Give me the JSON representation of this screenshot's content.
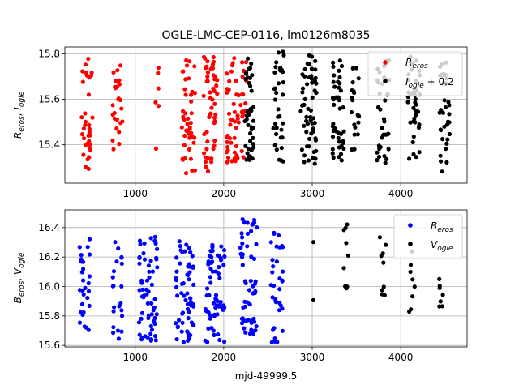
{
  "chart_data": [
    {
      "type": "scatter",
      "title": "OGLE-LMC-CEP-0116, lm0126m8035",
      "xlabel": "",
      "ylabel": "R_eros, I_ogle",
      "xlim": [
        205,
        4750
      ],
      "ylim": [
        15.23,
        15.83
      ],
      "xticks": [
        1000,
        2000,
        3000,
        4000
      ],
      "xtick_labels": [
        "1000",
        "2000",
        "3000",
        "4000"
      ],
      "yticks": [
        15.4,
        15.6,
        15.8
      ],
      "ytick_labels": [
        "15.4",
        "15.6",
        "15.8"
      ],
      "grid": true,
      "legend_position": "upper right",
      "series": [
        {
          "name": "R_eros",
          "color": "#ff0000",
          "clusters": [
            {
              "center": 450,
              "spread": 70,
              "n": 34,
              "ymin": 15.29,
              "ymax": 15.78
            },
            {
              "center": 800,
              "spread": 55,
              "n": 26,
              "ymin": 15.26,
              "ymax": 15.75
            },
            {
              "center": 1250,
              "spread": 40,
              "n": 6,
              "ymin": 15.38,
              "ymax": 15.77
            },
            {
              "center": 1600,
              "spread": 80,
              "n": 44,
              "ymin": 15.27,
              "ymax": 15.78
            },
            {
              "center": 1850,
              "spread": 80,
              "n": 52,
              "ymin": 15.28,
              "ymax": 15.79
            },
            {
              "center": 2100,
              "spread": 70,
              "n": 40,
              "ymin": 15.3,
              "ymax": 15.79
            },
            {
              "center": 2220,
              "spread": 40,
              "n": 18,
              "ymin": 15.33,
              "ymax": 15.78
            }
          ]
        },
        {
          "name": "I_ogle + 0.2",
          "color": "#000000",
          "clusters": [
            {
              "center": 2290,
              "spread": 50,
              "n": 42,
              "ymin": 15.33,
              "ymax": 15.79
            },
            {
              "center": 2620,
              "spread": 60,
              "n": 36,
              "ymin": 15.32,
              "ymax": 15.81
            },
            {
              "center": 2960,
              "spread": 90,
              "n": 60,
              "ymin": 15.31,
              "ymax": 15.81
            },
            {
              "center": 3300,
              "spread": 70,
              "n": 44,
              "ymin": 15.33,
              "ymax": 15.8
            },
            {
              "center": 3480,
              "spread": 50,
              "n": 20,
              "ymin": 15.36,
              "ymax": 15.78
            },
            {
              "center": 3800,
              "spread": 70,
              "n": 36,
              "ymin": 15.31,
              "ymax": 15.79
            },
            {
              "center": 4150,
              "spread": 70,
              "n": 40,
              "ymin": 15.32,
              "ymax": 15.8
            },
            {
              "center": 4500,
              "spread": 60,
              "n": 34,
              "ymin": 15.28,
              "ymax": 15.78
            }
          ]
        }
      ],
      "legend": [
        {
          "name": "R_eros",
          "color": "#ff0000"
        },
        {
          "name": "I_ogle + 0.2",
          "color": "#000000"
        }
      ]
    },
    {
      "type": "scatter",
      "title": "",
      "xlabel": "mjd-49999.5",
      "ylabel": "B_eros, V_ogle",
      "xlim": [
        205,
        4750
      ],
      "ylim": [
        15.59,
        16.52
      ],
      "xticks": [
        1000,
        2000,
        3000,
        4000
      ],
      "xtick_labels": [
        "1000",
        "2000",
        "3000",
        "4000"
      ],
      "yticks": [
        15.6,
        15.8,
        16.0,
        16.2,
        16.4
      ],
      "ytick_labels": [
        "15.6",
        "15.8",
        "16.0",
        "16.2",
        "16.4"
      ],
      "grid": true,
      "legend_position": "upper right",
      "series": [
        {
          "name": "B_eros",
          "color": "#0000ff",
          "clusters": [
            {
              "center": 420,
              "spread": 70,
              "n": 28,
              "ymin": 15.67,
              "ymax": 16.36
            },
            {
              "center": 800,
              "spread": 55,
              "n": 22,
              "ymin": 15.64,
              "ymax": 16.33
            },
            {
              "center": 1150,
              "spread": 110,
              "n": 62,
              "ymin": 15.63,
              "ymax": 16.35
            },
            {
              "center": 1550,
              "spread": 110,
              "n": 62,
              "ymin": 15.62,
              "ymax": 16.31
            },
            {
              "center": 1900,
              "spread": 110,
              "n": 62,
              "ymin": 15.62,
              "ymax": 16.34
            },
            {
              "center": 2280,
              "spread": 100,
              "n": 56,
              "ymin": 15.67,
              "ymax": 16.46
            },
            {
              "center": 2600,
              "spread": 70,
              "n": 34,
              "ymin": 15.62,
              "ymax": 16.4
            }
          ]
        },
        {
          "name": "V_ogle",
          "color": "#000000",
          "clusters": [
            {
              "center": 3010,
              "spread": 10,
              "n": 2,
              "ymin": 15.82,
              "ymax": 16.43
            },
            {
              "center": 3380,
              "spread": 30,
              "n": 9,
              "ymin": 15.98,
              "ymax": 16.45
            },
            {
              "center": 3800,
              "spread": 40,
              "n": 9,
              "ymin": 15.93,
              "ymax": 16.34
            },
            {
              "center": 4130,
              "spread": 40,
              "n": 8,
              "ymin": 15.74,
              "ymax": 16.3
            },
            {
              "center": 4470,
              "spread": 35,
              "n": 7,
              "ymin": 15.68,
              "ymax": 16.31
            }
          ]
        }
      ],
      "legend": [
        {
          "name": "B_eros",
          "color": "#0000ff"
        },
        {
          "name": "V_ogle",
          "color": "#000000"
        }
      ]
    }
  ]
}
